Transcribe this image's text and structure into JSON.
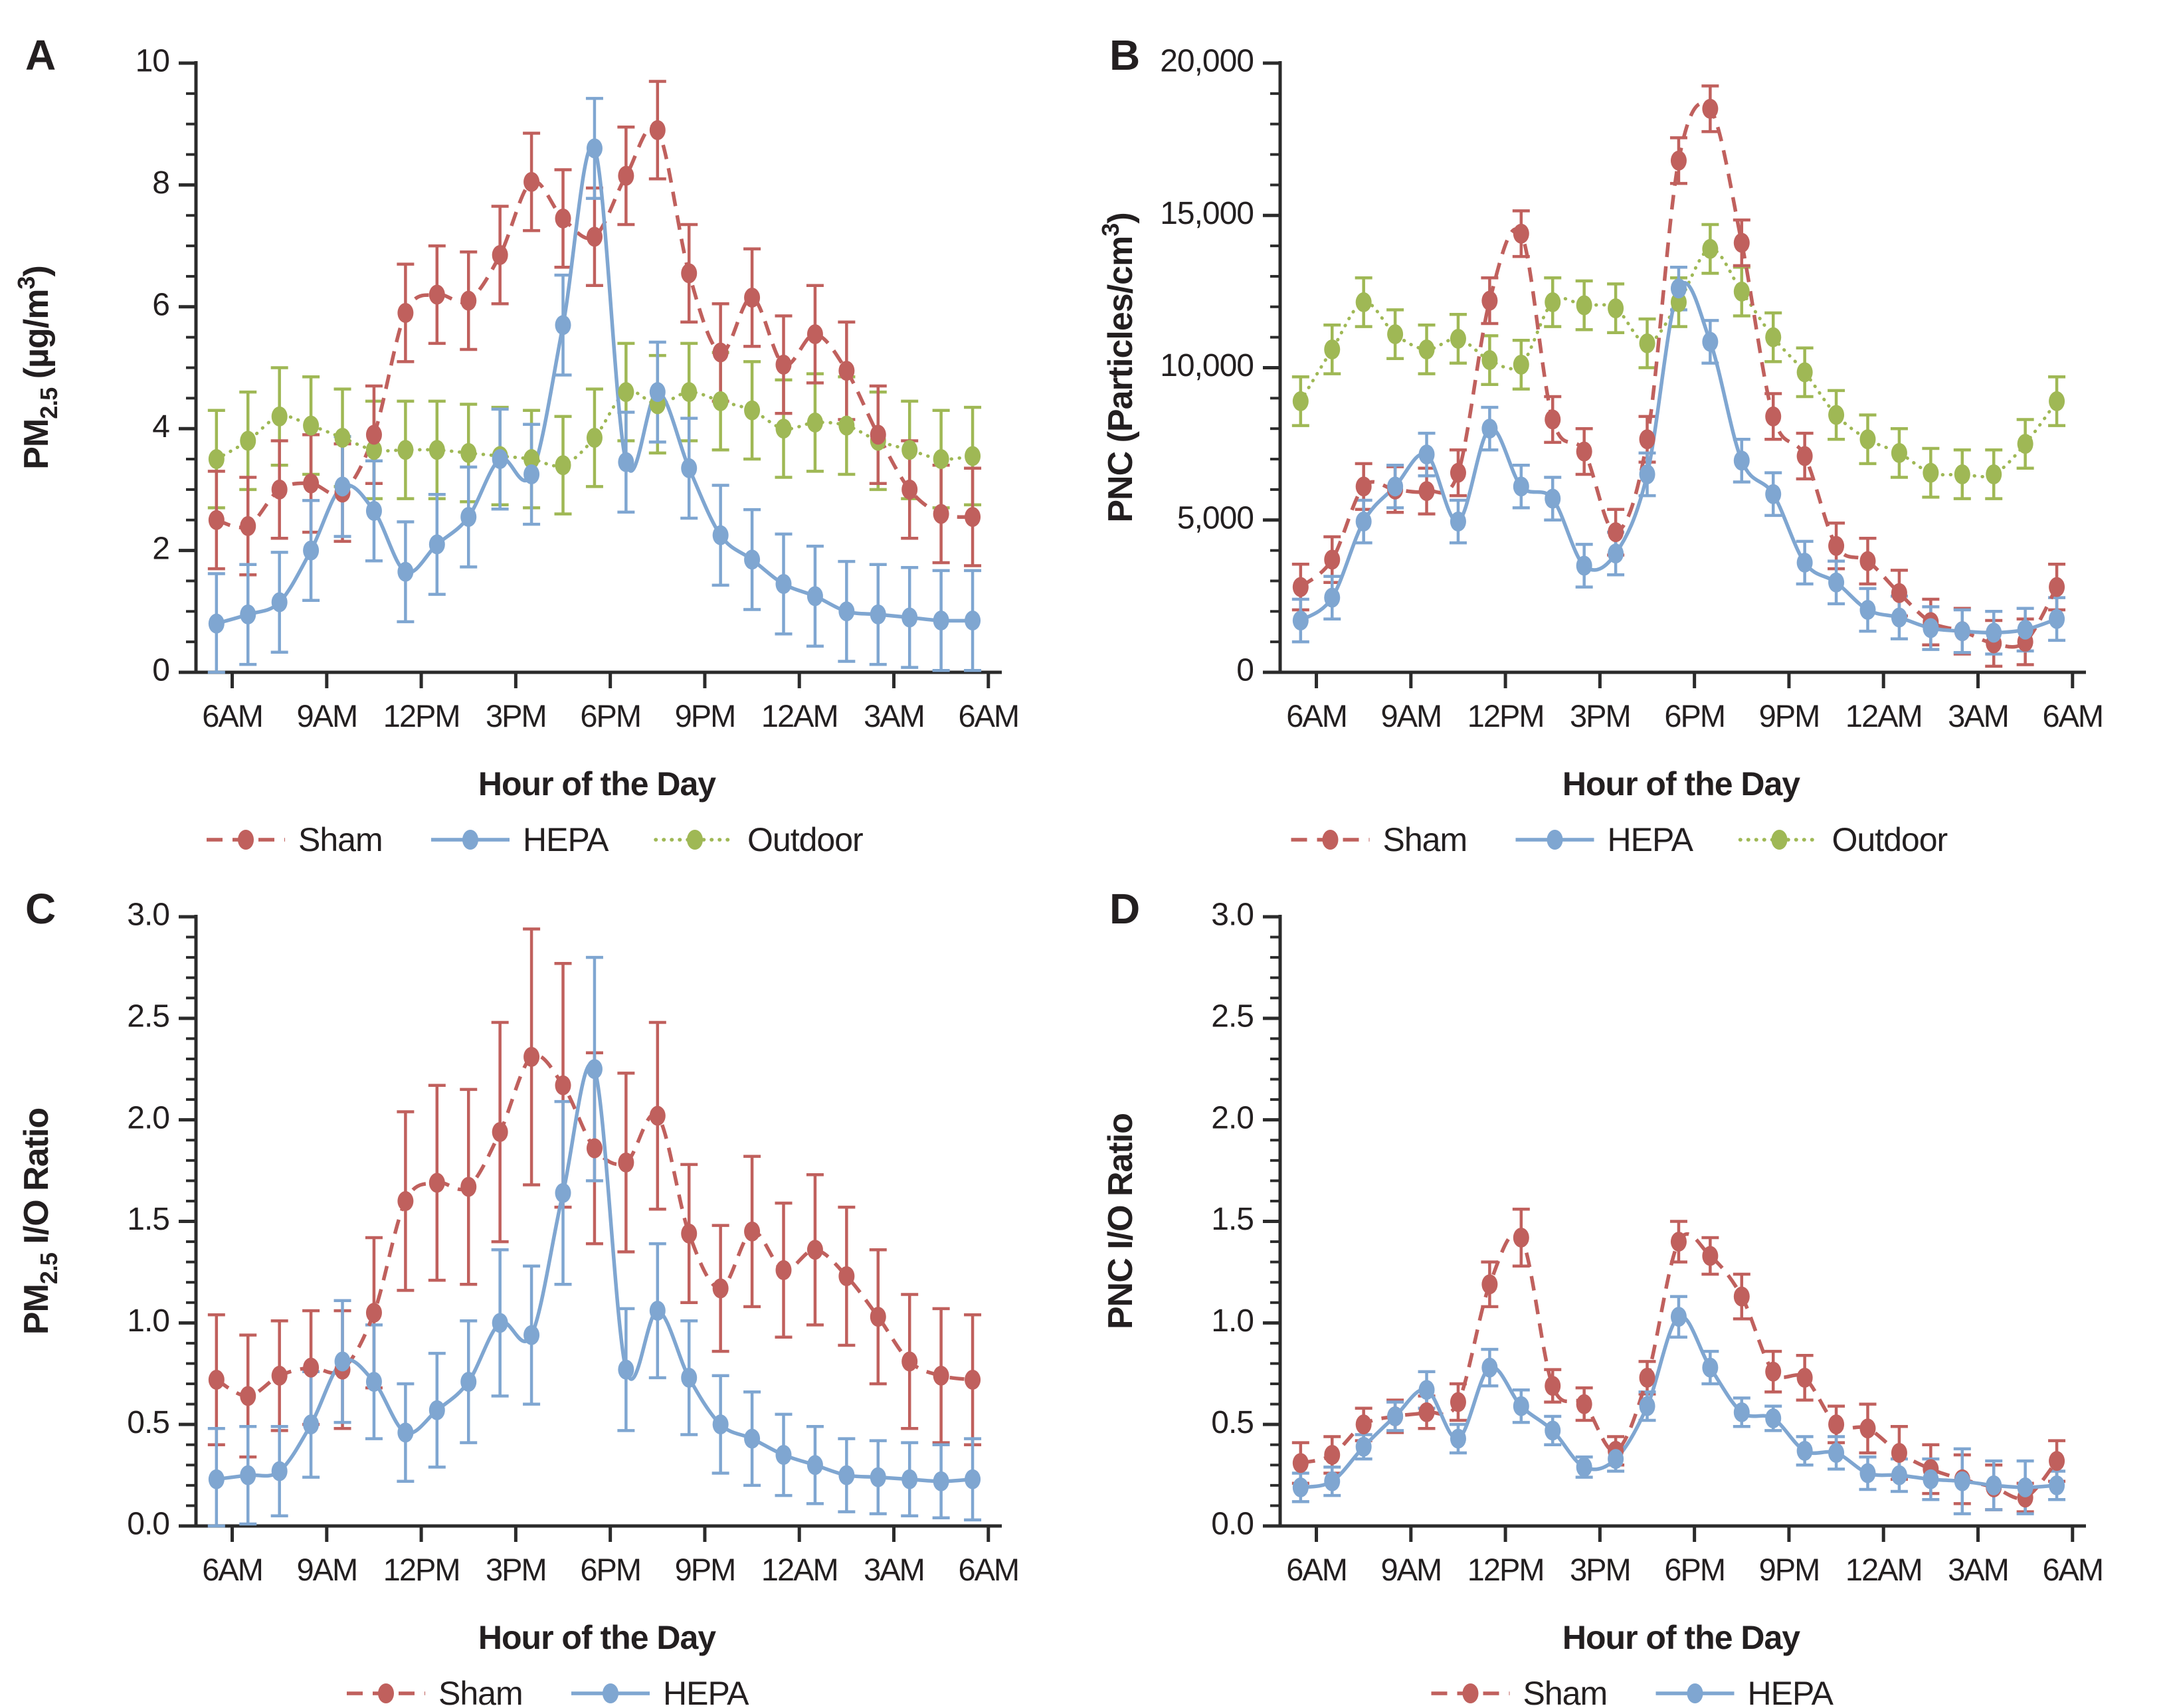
{
  "figure": {
    "xlabel": "Hour of the Day",
    "x_tick_labels": [
      "6AM",
      "9AM",
      "12PM",
      "3PM",
      "6PM",
      "9PM",
      "12AM",
      "3AM",
      "6AM"
    ],
    "colors": {
      "sham": "#c0605d",
      "hepa": "#7fa6d1",
      "outdoor": "#9fb855",
      "text": "#231f20",
      "axis": "#2b2b2b"
    },
    "legend_labels": {
      "sham": "Sham",
      "hepa": "HEPA",
      "outdoor": "Outdoor"
    }
  },
  "chart_data": [
    {
      "type": "line",
      "panel_letter": "A",
      "ylabel_parts": [
        {
          "t": "PM"
        },
        {
          "t": "2.5",
          "sub": true
        },
        {
          "t": " (µg/m"
        },
        {
          "t": "3",
          "sup": true
        },
        {
          "t": ")"
        }
      ],
      "ylim": [
        0,
        10
      ],
      "y_major_step": 2,
      "y_minor_step": 0.5,
      "ytick_labels": [
        "0",
        "2",
        "4",
        "6",
        "8",
        "10"
      ],
      "xlabel": "Hour of the Day",
      "legend_position": "bottom",
      "grid": false,
      "series": [
        {
          "key": "sham",
          "name": "Sham",
          "style": "dashed",
          "values": [
            2.5,
            2.4,
            3.0,
            3.1,
            2.95,
            3.9,
            5.9,
            6.2,
            6.1,
            6.85,
            8.05,
            7.45,
            7.15,
            8.15,
            8.9,
            6.55,
            5.25,
            6.15,
            5.05,
            5.55,
            4.95,
            3.9,
            3.0,
            2.6,
            2.55
          ],
          "err": 0.8
        },
        {
          "key": "hepa",
          "name": "HEPA",
          "style": "solid",
          "values": [
            0.8,
            0.95,
            1.15,
            2.0,
            3.05,
            2.65,
            1.65,
            2.1,
            2.55,
            3.5,
            3.25,
            5.7,
            8.6,
            3.45,
            4.6,
            3.35,
            2.25,
            1.85,
            1.45,
            1.25,
            1.0,
            0.95,
            0.9,
            0.85,
            0.85
          ],
          "err": 0.82
        },
        {
          "key": "outdoor",
          "name": "Outdoor",
          "style": "dotted",
          "values": [
            3.5,
            3.8,
            4.2,
            4.05,
            3.85,
            3.65,
            3.65,
            3.65,
            3.6,
            3.55,
            3.5,
            3.4,
            3.85,
            4.6,
            4.4,
            4.6,
            4.45,
            4.3,
            4.0,
            4.1,
            4.05,
            3.8,
            3.65,
            3.5,
            3.55
          ],
          "err": 0.8
        }
      ]
    },
    {
      "type": "line",
      "panel_letter": "B",
      "ylabel_parts": [
        {
          "t": "PNC (Particles/cm"
        },
        {
          "t": "3",
          "sup": true
        },
        {
          "t": ")"
        }
      ],
      "ylim": [
        0,
        20000
      ],
      "y_major_step": 5000,
      "y_minor_step": 1000,
      "ytick_labels": [
        "0",
        "5,000",
        "10,000",
        "15,000",
        "20,000"
      ],
      "xlabel": "Hour of the Day",
      "legend_position": "bottom",
      "grid": false,
      "series": [
        {
          "key": "sham",
          "name": "Sham",
          "style": "dashed",
          "values": [
            2800,
            3700,
            6100,
            6000,
            5950,
            6550,
            12200,
            14400,
            8300,
            7250,
            4600,
            7650,
            16800,
            18500,
            14100,
            8400,
            7100,
            4150,
            3650,
            2600,
            1650,
            1350,
            950,
            1000,
            2800
          ],
          "err": 750
        },
        {
          "key": "hepa",
          "name": "HEPA",
          "style": "solid",
          "values": [
            1700,
            2450,
            4950,
            6100,
            7150,
            4950,
            8000,
            6100,
            5700,
            3500,
            3900,
            6500,
            12600,
            10850,
            6950,
            5850,
            3600,
            2950,
            2050,
            1800,
            1450,
            1350,
            1300,
            1400,
            1750
          ],
          "err": 700
        },
        {
          "key": "outdoor",
          "name": "Outdoor",
          "style": "dotted",
          "values": [
            8900,
            10600,
            12150,
            11100,
            10600,
            10950,
            10250,
            10100,
            12150,
            12050,
            11950,
            10800,
            12150,
            13900,
            12500,
            11000,
            9850,
            8450,
            7650,
            7200,
            6550,
            6500,
            6500,
            7500,
            8900
          ],
          "err": 800
        }
      ]
    },
    {
      "type": "line",
      "panel_letter": "C",
      "ylabel_parts": [
        {
          "t": "PM"
        },
        {
          "t": "2.5",
          "sub": true
        },
        {
          "t": " I/O Ratio"
        }
      ],
      "ylim": [
        0,
        3
      ],
      "y_major_step": 0.5,
      "y_minor_step": 0.1,
      "ytick_labels": [
        "0.0",
        "0.5",
        "1.0",
        "1.5",
        "2.0",
        "2.5",
        "3.0"
      ],
      "xlabel": "Hour of the Day",
      "legend_position": "bottom",
      "grid": false,
      "series": [
        {
          "key": "sham",
          "name": "Sham",
          "style": "dashed",
          "values": [
            0.72,
            0.64,
            0.74,
            0.78,
            0.77,
            1.05,
            1.6,
            1.69,
            1.67,
            1.94,
            2.31,
            2.17,
            1.86,
            1.79,
            2.02,
            1.44,
            1.17,
            1.45,
            1.26,
            1.36,
            1.23,
            1.03,
            0.81,
            0.74,
            0.72
          ],
          "err": [
            0.32,
            0.3,
            0.27,
            0.28,
            0.29,
            0.37,
            0.44,
            0.48,
            0.48,
            0.54,
            0.63,
            0.6,
            0.47,
            0.44,
            0.46,
            0.34,
            0.31,
            0.37,
            0.33,
            0.37,
            0.34,
            0.33,
            0.33,
            0.33,
            0.32
          ]
        },
        {
          "key": "hepa",
          "name": "HEPA",
          "style": "solid",
          "values": [
            0.23,
            0.25,
            0.27,
            0.5,
            0.81,
            0.71,
            0.46,
            0.57,
            0.71,
            1.0,
            0.94,
            1.64,
            2.25,
            0.77,
            1.06,
            0.73,
            0.5,
            0.43,
            0.35,
            0.3,
            0.25,
            0.24,
            0.23,
            0.22,
            0.23
          ],
          "err": [
            0.25,
            0.24,
            0.22,
            0.26,
            0.3,
            0.28,
            0.24,
            0.28,
            0.3,
            0.36,
            0.34,
            0.45,
            0.55,
            0.3,
            0.33,
            0.28,
            0.24,
            0.23,
            0.2,
            0.19,
            0.18,
            0.18,
            0.18,
            0.18,
            0.2
          ]
        }
      ]
    },
    {
      "type": "line",
      "panel_letter": "D",
      "ylabel_parts": [
        {
          "t": "PNC I/O Ratio"
        }
      ],
      "ylim": [
        0,
        3
      ],
      "y_major_step": 0.5,
      "y_minor_step": 0.1,
      "ytick_labels": [
        "0.0",
        "0.5",
        "1.0",
        "1.5",
        "2.0",
        "2.5",
        "3.0"
      ],
      "xlabel": "Hour of the Day",
      "legend_position": "bottom",
      "grid": false,
      "series": [
        {
          "key": "sham",
          "name": "Sham",
          "style": "dashed",
          "values": [
            0.31,
            0.35,
            0.5,
            0.54,
            0.56,
            0.61,
            1.19,
            1.42,
            0.69,
            0.6,
            0.37,
            0.73,
            1.4,
            1.33,
            1.13,
            0.76,
            0.73,
            0.5,
            0.48,
            0.36,
            0.28,
            0.23,
            0.19,
            0.14,
            0.32
          ],
          "err": [
            0.1,
            0.09,
            0.08,
            0.08,
            0.08,
            0.09,
            0.11,
            0.14,
            0.08,
            0.08,
            0.07,
            0.08,
            0.1,
            0.09,
            0.11,
            0.1,
            0.11,
            0.09,
            0.12,
            0.13,
            0.12,
            0.12,
            0.11,
            0.07,
            0.1
          ]
        },
        {
          "key": "hepa",
          "name": "HEPA",
          "style": "solid",
          "values": [
            0.19,
            0.22,
            0.39,
            0.54,
            0.67,
            0.43,
            0.78,
            0.59,
            0.47,
            0.29,
            0.33,
            0.59,
            1.03,
            0.78,
            0.56,
            0.53,
            0.37,
            0.36,
            0.26,
            0.25,
            0.23,
            0.22,
            0.2,
            0.19,
            0.2
          ],
          "err": [
            0.07,
            0.07,
            0.06,
            0.07,
            0.09,
            0.07,
            0.09,
            0.08,
            0.07,
            0.05,
            0.06,
            0.07,
            0.1,
            0.08,
            0.07,
            0.06,
            0.07,
            0.08,
            0.08,
            0.08,
            0.1,
            0.16,
            0.12,
            0.13,
            0.07
          ]
        }
      ]
    }
  ]
}
